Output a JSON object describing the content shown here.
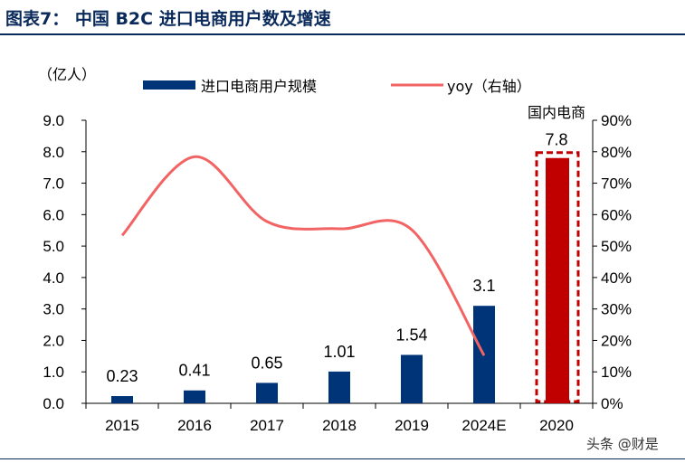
{
  "title": "图表7：  中国 B2C 进口电商用户数及增速",
  "watermark": "头条 @财是",
  "chart_data": {
    "type": "bar+line",
    "categories": [
      "2015",
      "2016",
      "2017",
      "2018",
      "2019",
      "2024E",
      "2020"
    ],
    "left_axis": {
      "label": "（亿人）",
      "range": [
        0,
        9
      ],
      "ticks": [
        "0.0",
        "1.0",
        "2.0",
        "3.0",
        "4.0",
        "5.0",
        "6.0",
        "7.0",
        "8.0",
        "9.0"
      ]
    },
    "right_axis": {
      "range": [
        0,
        90
      ],
      "ticks": [
        "0%",
        "10%",
        "20%",
        "30%",
        "40%",
        "50%",
        "60%",
        "70%",
        "80%",
        "90%"
      ]
    },
    "series": [
      {
        "name": "进口电商用户规模",
        "type": "bar",
        "color": "#003478",
        "values": [
          0.23,
          0.41,
          0.65,
          1.01,
          1.54,
          3.1,
          null
        ],
        "labels": [
          "0.23",
          "0.41",
          "0.65",
          "1.01",
          "1.54",
          "3.1",
          ""
        ]
      },
      {
        "name": "yoy（右轴）",
        "type": "line",
        "axis": "right",
        "color": "#f26464",
        "values": [
          53.4,
          78.4,
          57.8,
          55.5,
          55.2,
          15.2,
          null
        ]
      },
      {
        "name": "国内电商",
        "type": "bar",
        "color": "#c00000",
        "values": [
          null,
          null,
          null,
          null,
          null,
          null,
          7.8
        ],
        "labels": [
          "",
          "",
          "",
          "",
          "",
          "",
          "7.8"
        ],
        "highlight": "dashed-box"
      }
    ],
    "legend": "top"
  }
}
